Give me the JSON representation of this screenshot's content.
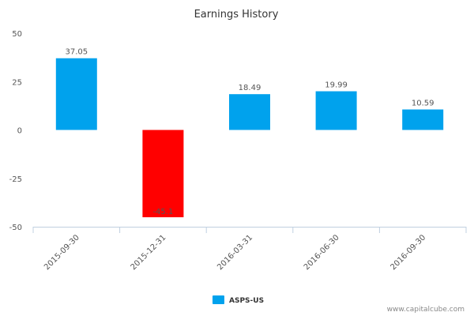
{
  "chart_data": {
    "type": "bar",
    "title": "Earnings History",
    "categories": [
      "2015-09-30",
      "2015-12-31",
      "2016-03-31",
      "2016-06-30",
      "2016-09-30"
    ],
    "series": [
      {
        "name": "ASPS-US",
        "values": [
          37.05,
          -45.1,
          18.49,
          19.99,
          10.59
        ]
      }
    ],
    "data_labels": [
      "37.05",
      "-45.1",
      "18.49",
      "19.99",
      "10.59"
    ],
    "ylim": [
      -50,
      50
    ],
    "yticks": [
      50,
      25,
      0,
      -25,
      -50
    ],
    "grid": false,
    "legend_position": "bottom-center",
    "colors": {
      "positive": "#00a2ed",
      "negative": "#ff0000",
      "legend": "#00a2ed",
      "axis": "#c0d0e0"
    }
  },
  "credit": "www.capitalcube.com"
}
